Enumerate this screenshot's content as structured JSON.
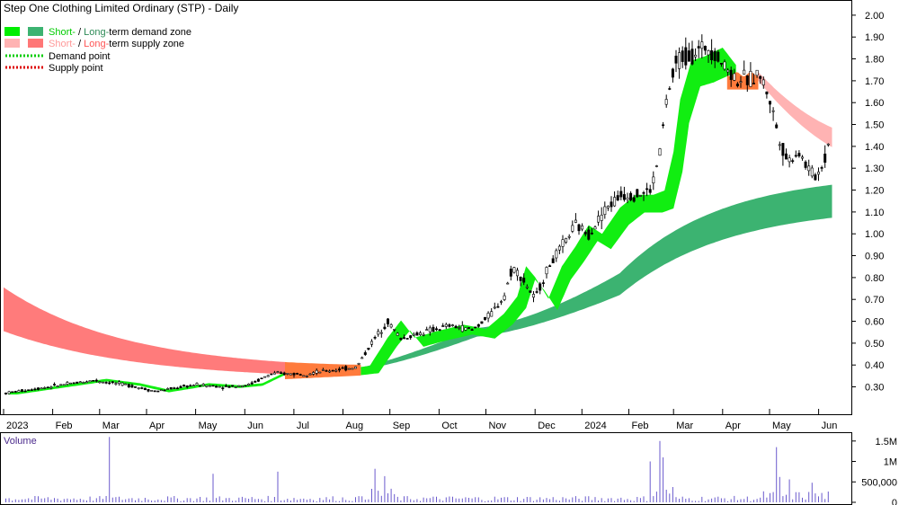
{
  "chart_data": {
    "type": "candlestick",
    "title": "Step One Clothing Limited Ordinary (STP) - Daily",
    "price_axis": {
      "ylim": [
        0.22,
        2.02
      ],
      "ticks": [
        "2.00",
        "1.90",
        "1.80",
        "1.70",
        "1.60",
        "1.50",
        "1.40",
        "1.30",
        "1.20",
        "1.10",
        "1.00",
        "0.90",
        "0.80",
        "0.70",
        "0.60",
        "0.50",
        "0.40",
        "0.30"
      ],
      "tick_values": [
        2.0,
        1.9,
        1.8,
        1.7,
        1.6,
        1.5,
        1.4,
        1.3,
        1.2,
        1.1,
        1.0,
        0.9,
        0.8,
        0.7,
        0.6,
        0.5,
        0.4,
        0.3
      ]
    },
    "x_axis": {
      "labels": [
        "2023",
        "Feb",
        "Mar",
        "Apr",
        "May",
        "Jun",
        "Jul",
        "Aug",
        "Sep",
        "Oct",
        "Nov",
        "Dec",
        "2024",
        "Feb",
        "Mar",
        "Apr",
        "May",
        "Jun"
      ],
      "label_days": [
        0,
        22,
        43,
        64,
        86,
        108,
        130,
        152,
        173,
        195,
        216,
        238,
        259,
        280,
        300,
        322,
        343,
        365
      ]
    },
    "legend": {
      "items": [
        {
          "key": "demand",
          "prefix": "Short-",
          "sep": " / ",
          "mid": "Long-",
          "suffix": "term demand zone",
          "short_color": "#00ee00",
          "long_color": "#3cb371"
        },
        {
          "key": "supply",
          "prefix": "Short-",
          "sep": " / ",
          "mid": "Long-",
          "suffix": "term supply zone",
          "short_color": "#ffb3b3",
          "long_color": "#ff7777"
        },
        {
          "key": "demand_point",
          "label": "Demand point",
          "color": "#00cc00"
        },
        {
          "key": "supply_point",
          "label": "Supply point",
          "color": "#dd0000"
        }
      ]
    },
    "price_keypoints": [
      [
        0,
        0.27
      ],
      [
        20,
        0.3
      ],
      [
        40,
        0.33
      ],
      [
        55,
        0.31
      ],
      [
        68,
        0.28
      ],
      [
        86,
        0.31
      ],
      [
        100,
        0.3
      ],
      [
        110,
        0.31
      ],
      [
        120,
        0.36
      ],
      [
        135,
        0.36
      ],
      [
        150,
        0.38
      ],
      [
        158,
        0.39
      ],
      [
        166,
        0.52
      ],
      [
        172,
        0.6
      ],
      [
        178,
        0.52
      ],
      [
        188,
        0.55
      ],
      [
        200,
        0.58
      ],
      [
        210,
        0.56
      ],
      [
        218,
        0.63
      ],
      [
        224,
        0.71
      ],
      [
        228,
        0.85
      ],
      [
        232,
        0.8
      ],
      [
        238,
        0.7
      ],
      [
        244,
        0.85
      ],
      [
        250,
        0.94
      ],
      [
        256,
        1.04
      ],
      [
        262,
        1.0
      ],
      [
        270,
        1.12
      ],
      [
        277,
        1.18
      ],
      [
        285,
        1.18
      ],
      [
        290,
        1.2
      ],
      [
        294,
        1.38
      ],
      [
        297,
        1.62
      ],
      [
        302,
        1.8
      ],
      [
        308,
        1.82
      ],
      [
        316,
        1.86
      ],
      [
        322,
        1.78
      ],
      [
        328,
        1.71
      ],
      [
        334,
        1.7
      ],
      [
        338,
        1.74
      ],
      [
        343,
        1.62
      ],
      [
        347,
        1.45
      ],
      [
        351,
        1.33
      ],
      [
        356,
        1.38
      ],
      [
        360,
        1.3
      ],
      [
        364,
        1.26
      ],
      [
        368,
        1.35
      ],
      [
        370,
        1.45
      ]
    ],
    "volume": {
      "axis_ticks": [
        "1.5M",
        "1M",
        "500,000",
        "0"
      ],
      "tick_values": [
        1500000,
        1000000,
        500000,
        0
      ],
      "ylim": [
        0,
        1650000
      ],
      "spikes": [
        [
          47,
          1600000
        ],
        [
          94,
          700000
        ],
        [
          123,
          750000
        ],
        [
          166,
          820000
        ],
        [
          171,
          640000
        ],
        [
          290,
          1000000
        ],
        [
          294,
          1500000
        ],
        [
          295,
          1100000
        ],
        [
          346,
          1350000
        ],
        [
          348,
          620000
        ],
        [
          352,
          560000
        ],
        [
          362,
          480000
        ]
      ],
      "baseline": 120000
    },
    "zones": {
      "long_supply": {
        "color": "#ff7b7b",
        "start": 0,
        "end": 126
      },
      "short_supply_mid": {
        "color": "#ff7b3c",
        "start": 126,
        "end": 160
      },
      "long_demand": {
        "color": "#3cb371",
        "start": 160,
        "end": 372
      },
      "short_demand": {
        "color": "#11ee11",
        "start": 0,
        "end": 340
      },
      "short_supply_recent": {
        "color": "#ffb3b3",
        "start": 340,
        "end": 371
      }
    },
    "grid": false,
    "legend_position": "top-left"
  },
  "volume_label": "Volume"
}
